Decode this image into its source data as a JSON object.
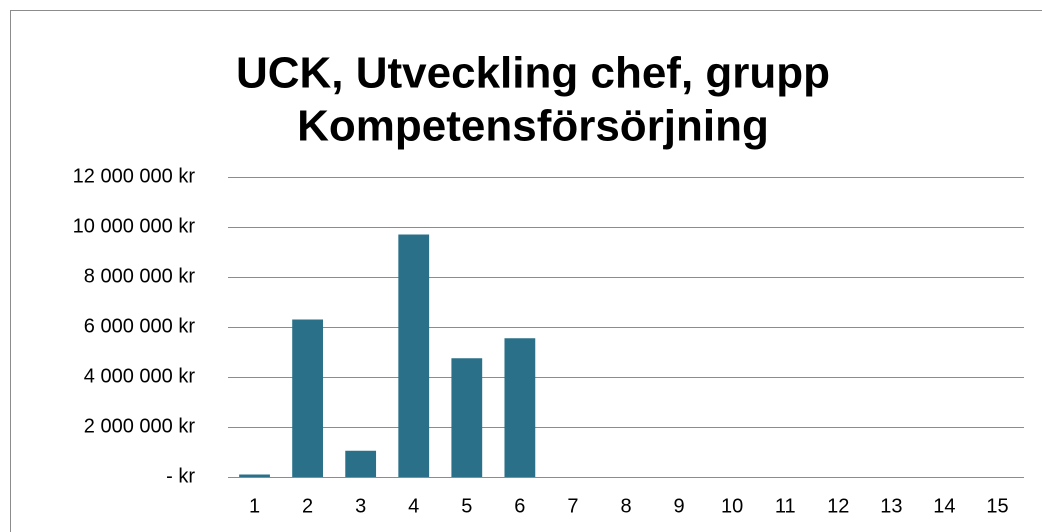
{
  "chart_data": {
    "type": "bar",
    "title": [
      "UCK, Utveckling chef, grupp",
      "Kompetensförsörjning"
    ],
    "categories": [
      "1",
      "2",
      "3",
      "4",
      "5",
      "6",
      "7",
      "8",
      "9",
      "10",
      "11",
      "12",
      "13",
      "14",
      "15"
    ],
    "values": [
      100000,
      6300000,
      1050000,
      9700000,
      4750000,
      5550000,
      null,
      null,
      null,
      null,
      null,
      null,
      null,
      null,
      null
    ],
    "color": "#2a7089",
    "ylim": [
      0,
      12000000
    ],
    "yticks": [
      {
        "value": 0,
        "label": "-   kr"
      },
      {
        "value": 2000000,
        "label": "2 000 000 kr"
      },
      {
        "value": 4000000,
        "label": "4 000 000 kr"
      },
      {
        "value": 6000000,
        "label": "6 000 000 kr"
      },
      {
        "value": 8000000,
        "label": "8 000 000 kr"
      },
      {
        "value": 10000000,
        "label": "10 000 000 kr"
      },
      {
        "value": 12000000,
        "label": "12 000 000 kr"
      }
    ],
    "grid": true
  }
}
